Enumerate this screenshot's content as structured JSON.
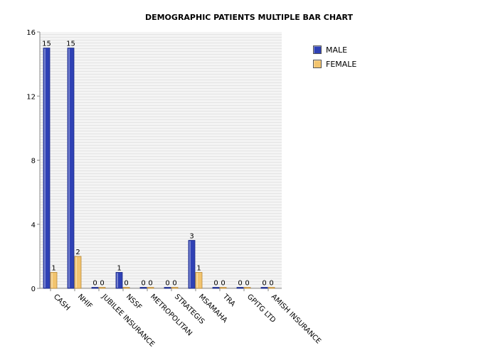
{
  "chart_data": {
    "type": "bar",
    "title": "DEMOGRAPHIC PATIENTS MULTIPLE BAR CHART",
    "categories": [
      "CASH",
      "NHIF",
      "JUBILEE INSURANCE",
      "NSSF",
      "METROPOLITAN",
      "STRATEGIS",
      "MSAMAHA",
      "TRA",
      "GPITG LTD",
      "AMISH INSURANCE"
    ],
    "series": [
      {
        "name": "MALE",
        "color": "#2f41b5",
        "values": [
          15,
          15,
          0,
          1,
          0,
          0,
          3,
          0,
          0,
          0
        ]
      },
      {
        "name": "FEMALE",
        "color": "#f2c46e",
        "values": [
          1,
          2,
          0,
          0,
          0,
          0,
          1,
          0,
          0,
          0
        ]
      }
    ],
    "ylim": [
      0,
      16
    ],
    "yticks": [
      0,
      4,
      8,
      12,
      16
    ],
    "grid": true,
    "legend": "top-right"
  }
}
